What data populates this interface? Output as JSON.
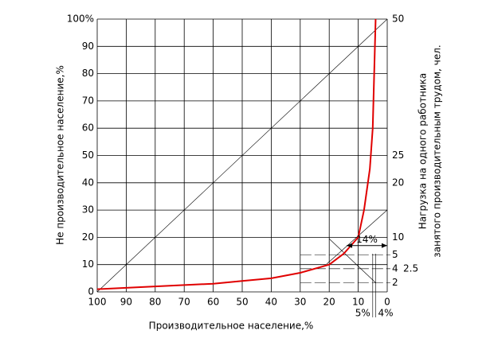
{
  "chart_data": {
    "type": "line",
    "xlabel": "Производительное население,%",
    "ylabel": "Не производительное население,%",
    "y2label": [
      "Нагрузка на одного работника",
      "занятого производительным трудом, чел."
    ],
    "x": [
      100,
      80,
      60,
      50,
      40,
      30,
      20,
      15,
      10,
      8,
      6,
      5,
      4.5,
      4
    ],
    "series": [
      {
        "color": "#e00000",
        "values": [
          1,
          2,
          3,
          4,
          5,
          7,
          10,
          14,
          20,
          30,
          45,
          60,
          80,
          100
        ]
      }
    ],
    "xlim": [
      100,
      0
    ],
    "xticks": [
      100,
      90,
      80,
      70,
      60,
      50,
      40,
      30,
      20,
      10,
      0
    ],
    "ylim": [
      0,
      100
    ],
    "yticks": [
      0,
      10,
      20,
      30,
      40,
      50,
      60,
      70,
      80,
      90,
      {
        "value": 100,
        "label": "100%"
      }
    ],
    "y2ticks": [
      {
        "value": 50,
        "at": 100
      },
      {
        "value": 25,
        "at": 50
      },
      {
        "value": 20,
        "at": 40
      },
      {
        "value": 10,
        "at": 20
      },
      {
        "value": 5,
        "at": 13.5
      },
      {
        "value": 4,
        "at": 8.5
      },
      {
        "value": 2.5,
        "at": 8.5
      },
      {
        "value": 2,
        "at": 3.3
      }
    ],
    "annotations": [
      {
        "value": 14,
        "label": "14%"
      },
      {
        "value": 5,
        "label": "5%"
      },
      {
        "value": 4,
        "label": "4%"
      }
    ],
    "grid": true
  }
}
